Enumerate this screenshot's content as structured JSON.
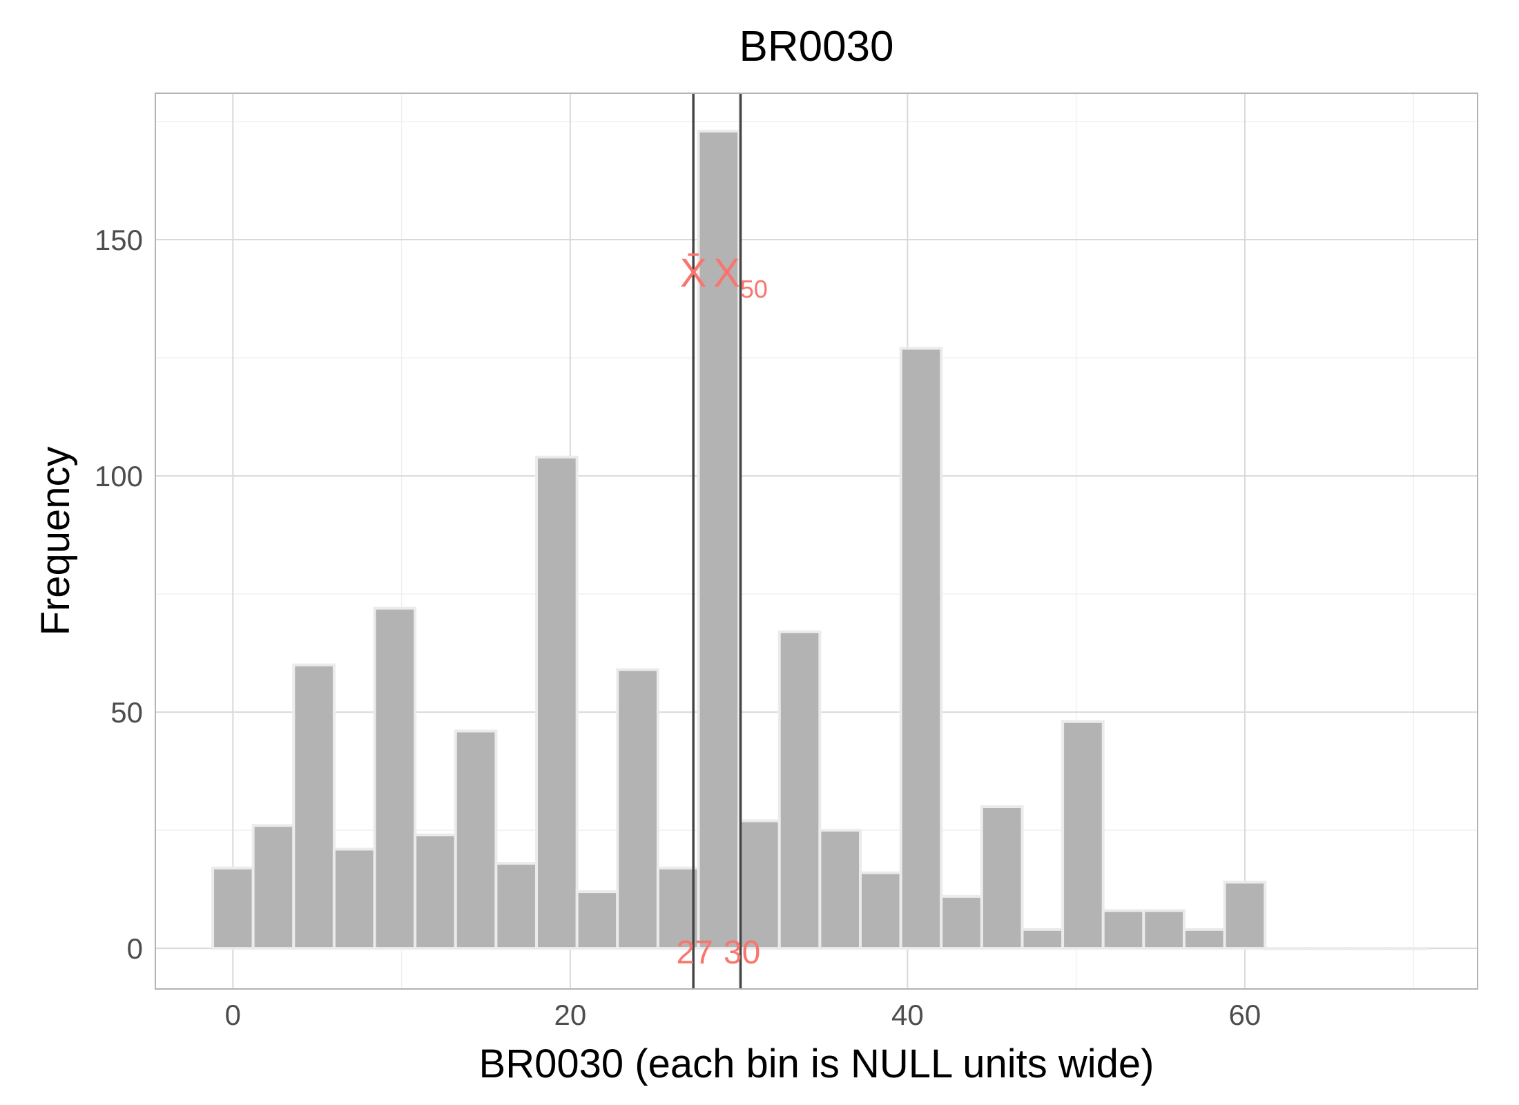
{
  "chart_data": {
    "type": "bar",
    "title": "BR0030",
    "xlabel": "BR0030 (each bin is NULL units wide)",
    "ylabel": "Frequency",
    "xlim": [
      -4.6,
      73.8
    ],
    "ylim": [
      -8.6,
      181
    ],
    "x_ticks": [
      0,
      20,
      40,
      60
    ],
    "y_ticks": [
      0,
      50,
      100,
      150
    ],
    "bin_width": 2.4,
    "bins": [
      {
        "x": 0,
        "count": 17
      },
      {
        "x": 2.4,
        "count": 26
      },
      {
        "x": 4.8,
        "count": 60
      },
      {
        "x": 7.2,
        "count": 21
      },
      {
        "x": 9.6,
        "count": 72
      },
      {
        "x": 12.0,
        "count": 24
      },
      {
        "x": 14.4,
        "count": 46
      },
      {
        "x": 16.8,
        "count": 18
      },
      {
        "x": 19.2,
        "count": 104
      },
      {
        "x": 21.6,
        "count": 12
      },
      {
        "x": 24.0,
        "count": 59
      },
      {
        "x": 26.4,
        "count": 17
      },
      {
        "x": 28.8,
        "count": 173
      },
      {
        "x": 31.2,
        "count": 27
      },
      {
        "x": 33.6,
        "count": 67
      },
      {
        "x": 36.0,
        "count": 25
      },
      {
        "x": 38.4,
        "count": 16
      },
      {
        "x": 40.8,
        "count": 127
      },
      {
        "x": 43.2,
        "count": 11
      },
      {
        "x": 45.6,
        "count": 30
      },
      {
        "x": 48.0,
        "count": 4
      },
      {
        "x": 50.4,
        "count": 48
      },
      {
        "x": 52.8,
        "count": 8
      },
      {
        "x": 55.2,
        "count": 8
      },
      {
        "x": 57.6,
        "count": 4
      },
      {
        "x": 60.0,
        "count": 14
      },
      {
        "x": 62.4,
        "count": 0
      },
      {
        "x": 64.8,
        "count": 0
      },
      {
        "x": 67.2,
        "count": 0
      },
      {
        "x": 69.6,
        "count": 0
      }
    ],
    "reference_lines": [
      {
        "label": "X̄",
        "x": 27.3,
        "value_label": "27"
      },
      {
        "label": "X50",
        "x": 30.1,
        "value_label": "30"
      }
    ],
    "grid": true,
    "colors": {
      "bar_fill": "#b3b3b3",
      "bar_outline": "#ebebeb",
      "annotation": "#f8766d",
      "ref_line": "#444444",
      "grid_major": "#d9d9d9",
      "grid_minor": "#f0f0f0",
      "panel_border": "#b3b3b3"
    }
  }
}
